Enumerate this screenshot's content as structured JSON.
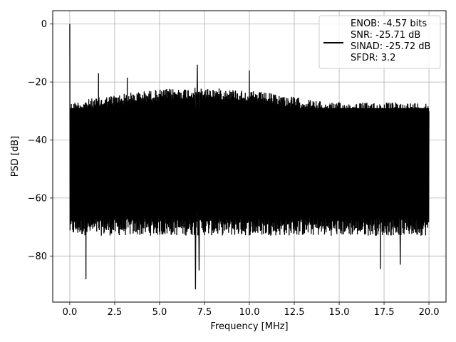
{
  "chart_data": {
    "type": "line",
    "xlabel": "Frequency [MHz]",
    "ylabel": "PSD [dB]",
    "xlim": [
      -0.95,
      20.95
    ],
    "ylim": [
      -95.9,
      4.6
    ],
    "xticks": [
      0.0,
      2.5,
      5.0,
      7.5,
      10.0,
      12.5,
      15.0,
      17.5,
      20.0
    ],
    "xtick_labels": [
      "0.0",
      "2.5",
      "5.0",
      "7.5",
      "10.0",
      "12.5",
      "15.0",
      "17.5",
      "20.0"
    ],
    "yticks": [
      0,
      -20,
      -40,
      -60,
      -80
    ],
    "ytick_labels": [
      "0",
      "−20",
      "−40",
      "−60",
      "−80"
    ],
    "grid": true,
    "legend_position": "top-right",
    "series": [
      {
        "name_lines": [
          "ENOB: -4.57 bits",
          "SNR: -25.71 dB",
          "SINAD: -25.72 dB",
          "SFDR: 3.2"
        ],
        "color": "#000000",
        "x_range": [
          0.0,
          20.0
        ],
        "noise_upper_dB": -27,
        "noise_upper_mid_dB": -22,
        "noise_lower_dB": -70,
        "spikes": [
          {
            "x": 0.0,
            "y": 0.0
          },
          {
            "x": 1.6,
            "y": -17.0
          },
          {
            "x": 3.2,
            "y": -18.5
          },
          {
            "x": 7.1,
            "y": -14.0
          },
          {
            "x": 10.0,
            "y": -16.0
          }
        ],
        "dips": [
          {
            "x": 0.9,
            "y": -88.0
          },
          {
            "x": 7.0,
            "y": -91.5
          },
          {
            "x": 7.2,
            "y": -85.0
          },
          {
            "x": 17.3,
            "y": -84.5
          },
          {
            "x": 18.4,
            "y": -83.0
          }
        ]
      }
    ]
  }
}
